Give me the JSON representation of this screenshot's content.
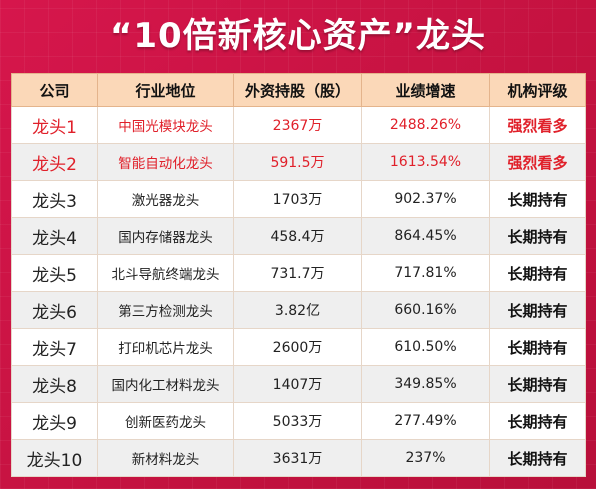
{
  "title": "“10倍新核心资产”龙头",
  "colors": {
    "background": "#d01a4a",
    "header_bg": "#fbd8b8",
    "highlight_text": "#e0202a",
    "row_alt": "#efefef"
  },
  "table": {
    "headers": [
      "公司",
      "行业地位",
      "外资持股（股）",
      "业绩增速",
      "机构评级"
    ],
    "rows": [
      {
        "company": "龙头1",
        "position": "中国光模块龙头",
        "foreign_holding": "2367万",
        "growth": "2488.26%",
        "rating": "强烈看多",
        "highlight": true
      },
      {
        "company": "龙头2",
        "position": "智能自动化龙头",
        "foreign_holding": "591.5万",
        "growth": "1613.54%",
        "rating": "强烈看多",
        "highlight": true
      },
      {
        "company": "龙头3",
        "position": "激光器龙头",
        "foreign_holding": "1703万",
        "growth": "902.37%",
        "rating": "长期持有",
        "highlight": false
      },
      {
        "company": "龙头4",
        "position": "国内存储器龙头",
        "foreign_holding": "458.4万",
        "growth": "864.45%",
        "rating": "长期持有",
        "highlight": false
      },
      {
        "company": "龙头5",
        "position": "北斗导航终端龙头",
        "foreign_holding": "731.7万",
        "growth": "717.81%",
        "rating": "长期持有",
        "highlight": false
      },
      {
        "company": "龙头6",
        "position": "第三方检测龙头",
        "foreign_holding": "3.82亿",
        "growth": "660.16%",
        "rating": "长期持有",
        "highlight": false
      },
      {
        "company": "龙头7",
        "position": "打印机芯片龙头",
        "foreign_holding": "2600万",
        "growth": "610.50%",
        "rating": "长期持有",
        "highlight": false
      },
      {
        "company": "龙头8",
        "position": "国内化工材料龙头",
        "foreign_holding": "1407万",
        "growth": "349.85%",
        "rating": "长期持有",
        "highlight": false
      },
      {
        "company": "龙头9",
        "position": "创新医药龙头",
        "foreign_holding": "5033万",
        "growth": "277.49%",
        "rating": "长期持有",
        "highlight": false
      },
      {
        "company": "龙头10",
        "position": "新材料龙头",
        "foreign_holding": "3631万",
        "growth": "237%",
        "rating": "长期持有",
        "highlight": false
      }
    ]
  }
}
